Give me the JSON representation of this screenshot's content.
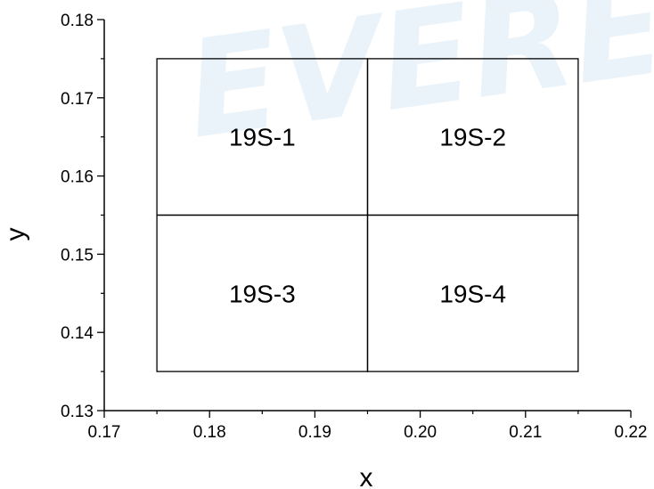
{
  "chart_data": {
    "type": "rectangle-regions",
    "xlabel": "x",
    "ylabel": "y",
    "xlim": [
      0.17,
      0.22
    ],
    "ylim": [
      0.13,
      0.18
    ],
    "x_ticks": [
      "0.17",
      "0.18",
      "0.19",
      "0.20",
      "0.21",
      "0.22"
    ],
    "y_ticks": [
      "0.13",
      "0.14",
      "0.15",
      "0.16",
      "0.17",
      "0.18"
    ],
    "x_minor_step": 0.005,
    "y_minor_step": 0.005,
    "grid": false,
    "regions": [
      {
        "label": "19S-1",
        "x": [
          0.175,
          0.195
        ],
        "y": [
          0.155,
          0.175
        ]
      },
      {
        "label": "19S-2",
        "x": [
          0.195,
          0.215
        ],
        "y": [
          0.155,
          0.175
        ]
      },
      {
        "label": "19S-3",
        "x": [
          0.175,
          0.195
        ],
        "y": [
          0.135,
          0.155
        ]
      },
      {
        "label": "19S-4",
        "x": [
          0.195,
          0.215
        ],
        "y": [
          0.135,
          0.155
        ]
      }
    ],
    "watermark": "EVEREI",
    "colors": {
      "line": "#000000",
      "watermark": "#5aa6d6"
    }
  }
}
